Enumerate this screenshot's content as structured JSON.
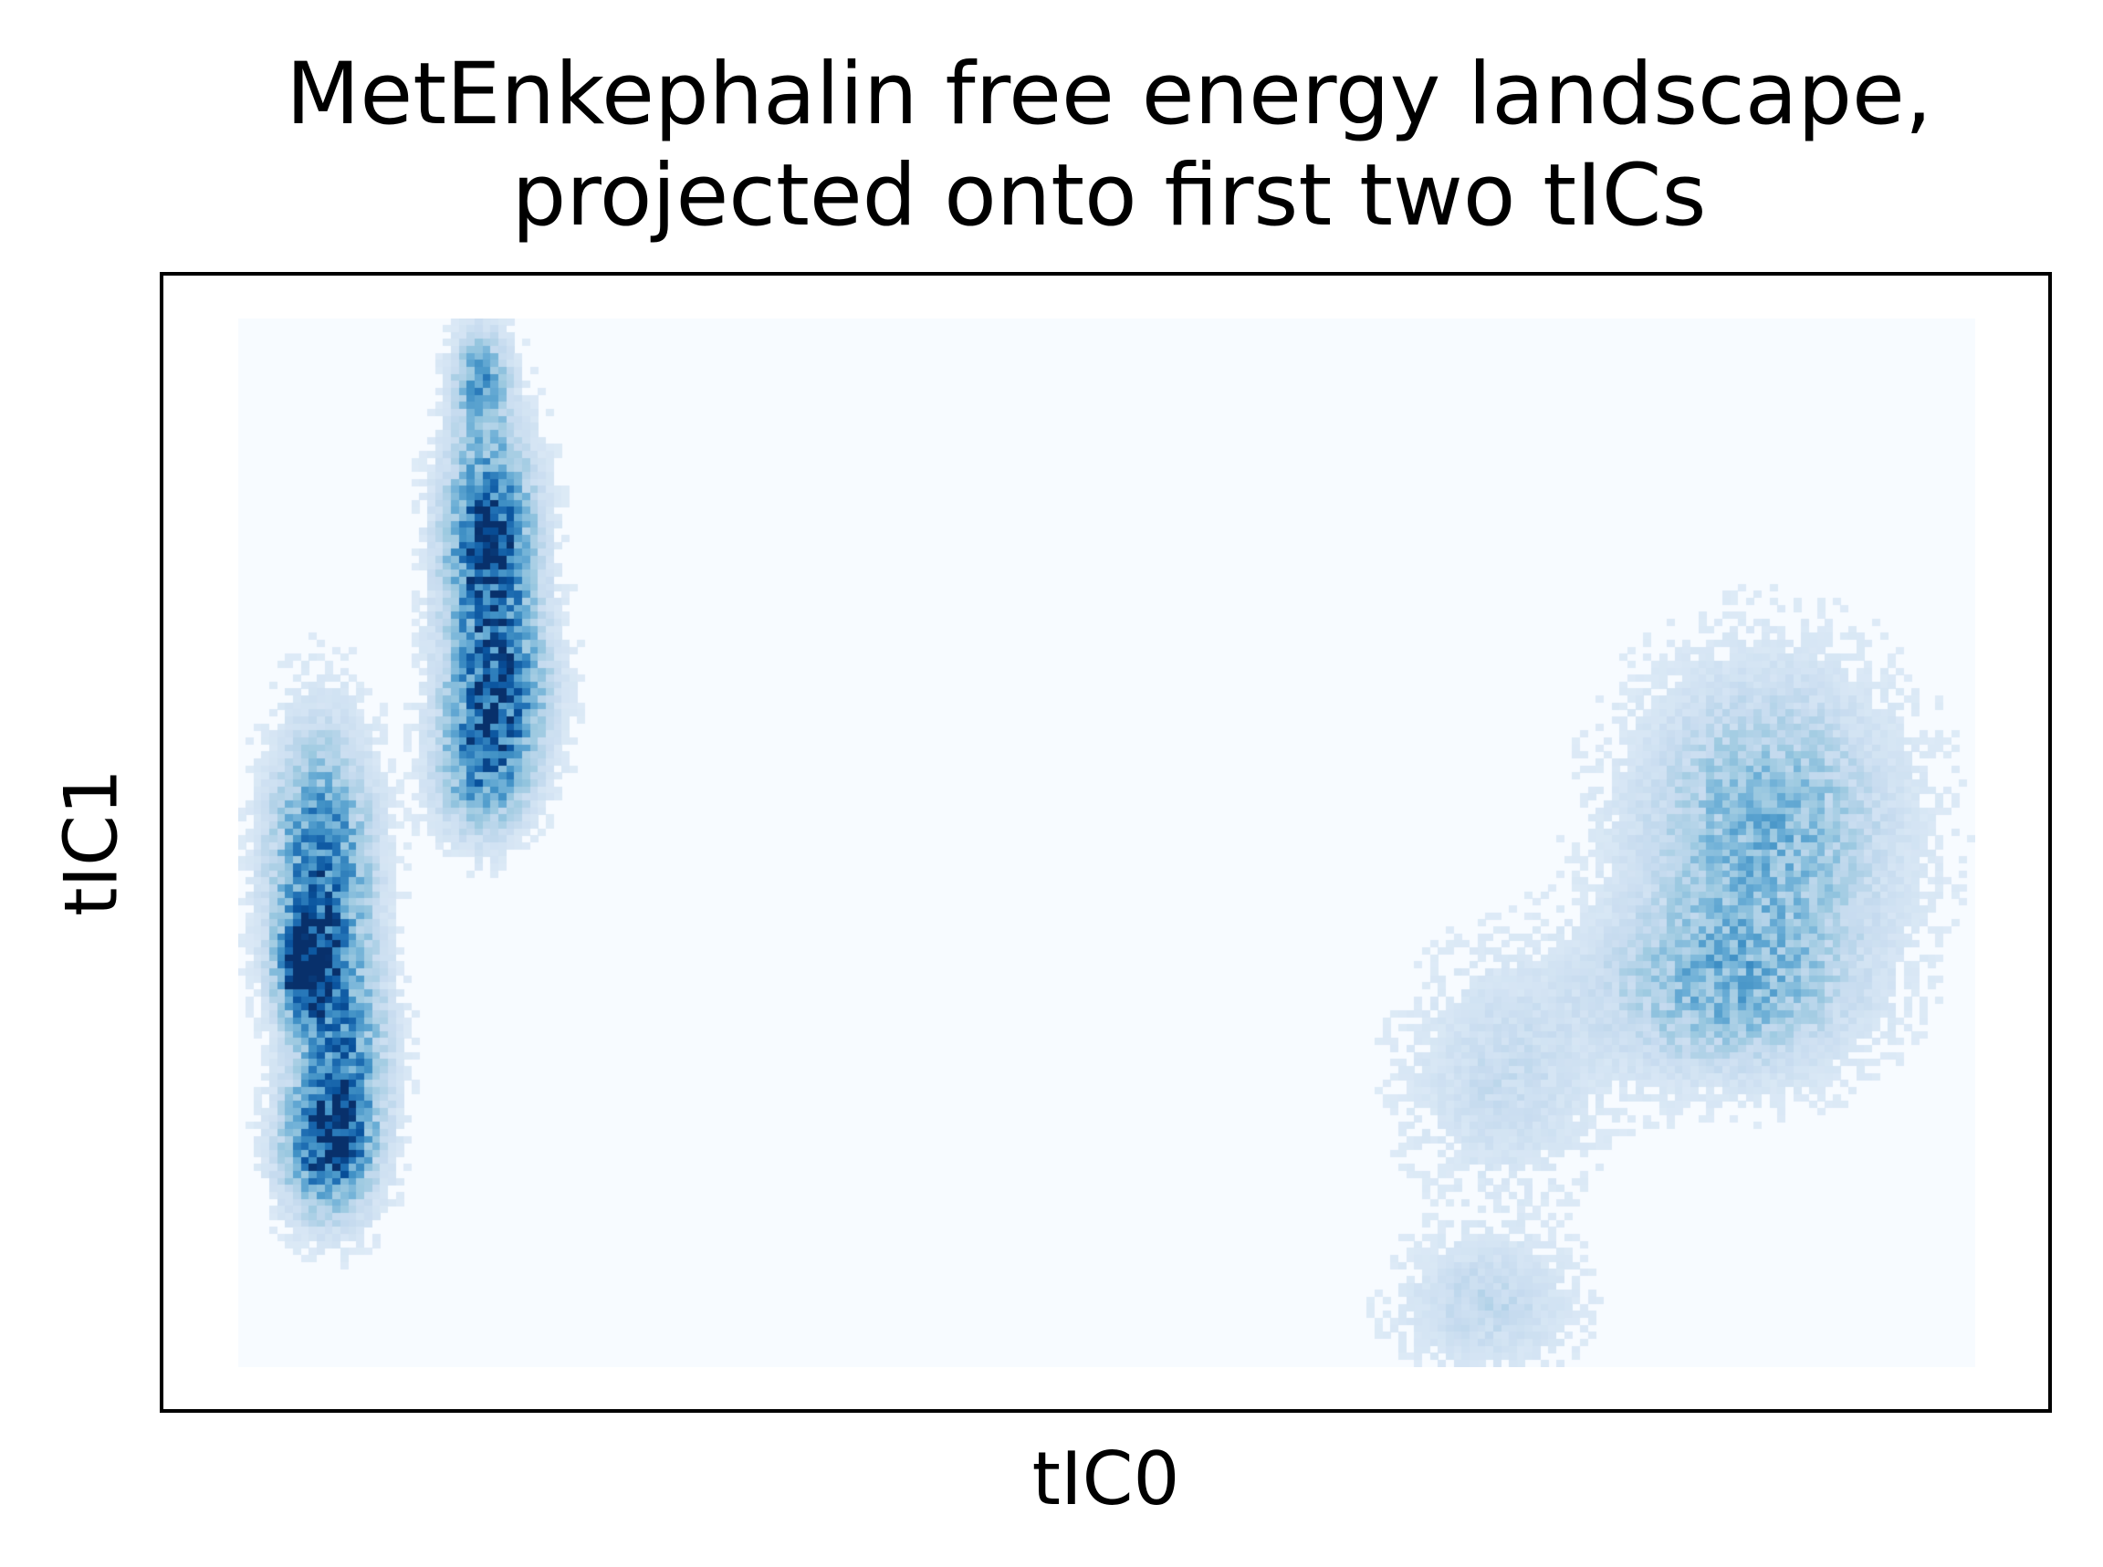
{
  "chart_data": {
    "type": "heatmap",
    "title_lines": [
      "MetEnkephalin free energy landscape,",
      "projected onto first two tICs"
    ],
    "xlabel": "tIC0",
    "ylabel": "tIC1",
    "colormap": "Blues",
    "background_color": "#f7fbff",
    "xlim": [
      0,
      1
    ],
    "ylim": [
      0,
      1
    ],
    "grid": false,
    "ticks": false,
    "grid_size": [
      220,
      150
    ],
    "density_clusters": [
      {
        "x": 0.04,
        "y": 0.38,
        "sx": 0.01,
        "sy": 0.03,
        "w": 1.0
      },
      {
        "x": 0.048,
        "y": 0.47,
        "sx": 0.018,
        "sy": 0.08,
        "w": 0.7
      },
      {
        "x": 0.052,
        "y": 0.21,
        "sx": 0.016,
        "sy": 0.04,
        "w": 0.85
      },
      {
        "x": 0.06,
        "y": 0.3,
        "sx": 0.016,
        "sy": 0.06,
        "w": 0.55
      },
      {
        "x": 0.145,
        "y": 0.78,
        "sx": 0.016,
        "sy": 0.07,
        "w": 0.9
      },
      {
        "x": 0.15,
        "y": 0.64,
        "sx": 0.018,
        "sy": 0.05,
        "w": 0.65
      },
      {
        "x": 0.14,
        "y": 0.57,
        "sx": 0.016,
        "sy": 0.04,
        "w": 0.5
      },
      {
        "x": 0.14,
        "y": 0.94,
        "sx": 0.01,
        "sy": 0.03,
        "w": 0.45
      },
      {
        "x": 0.88,
        "y": 0.51,
        "sx": 0.045,
        "sy": 0.09,
        "w": 0.38
      },
      {
        "x": 0.855,
        "y": 0.36,
        "sx": 0.045,
        "sy": 0.05,
        "w": 0.34
      },
      {
        "x": 0.73,
        "y": 0.28,
        "sx": 0.035,
        "sy": 0.07,
        "w": 0.13
      },
      {
        "x": 0.72,
        "y": 0.06,
        "sx": 0.03,
        "sy": 0.04,
        "w": 0.16
      }
    ],
    "clusters_note_omitted": true
  }
}
